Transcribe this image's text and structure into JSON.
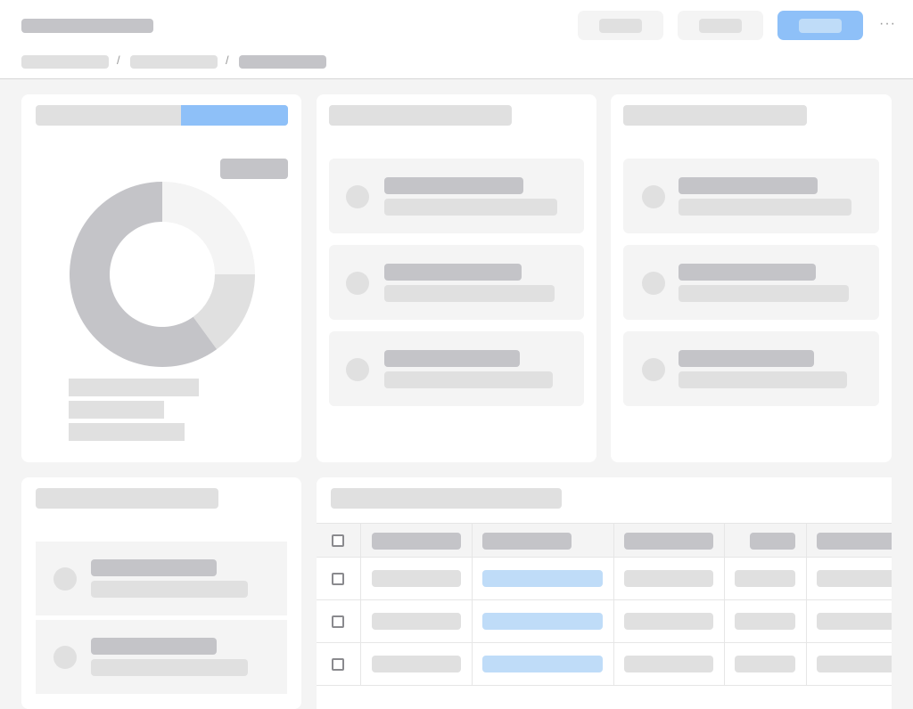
{
  "theme": {
    "accent": "#8ec0f8",
    "accent_light": "#bfdcf8",
    "skeleton_dark": "#c4c4c8",
    "skeleton_light": "#e0e0e0",
    "background": "#f4f4f4"
  },
  "header": {
    "breadcrumb_separator": "/",
    "more_icon": "more-horizontal-icon",
    "more_text": "···"
  },
  "donut_chart": {
    "type": "pie",
    "segments": [
      {
        "fraction": 0.25,
        "color": "#f4f4f4"
      },
      {
        "fraction": 0.15,
        "color": "#e0e0e0"
      },
      {
        "fraction": 0.6,
        "color": "#c4c4c8"
      }
    ]
  },
  "table": {
    "columns": 6,
    "rows": 3
  }
}
